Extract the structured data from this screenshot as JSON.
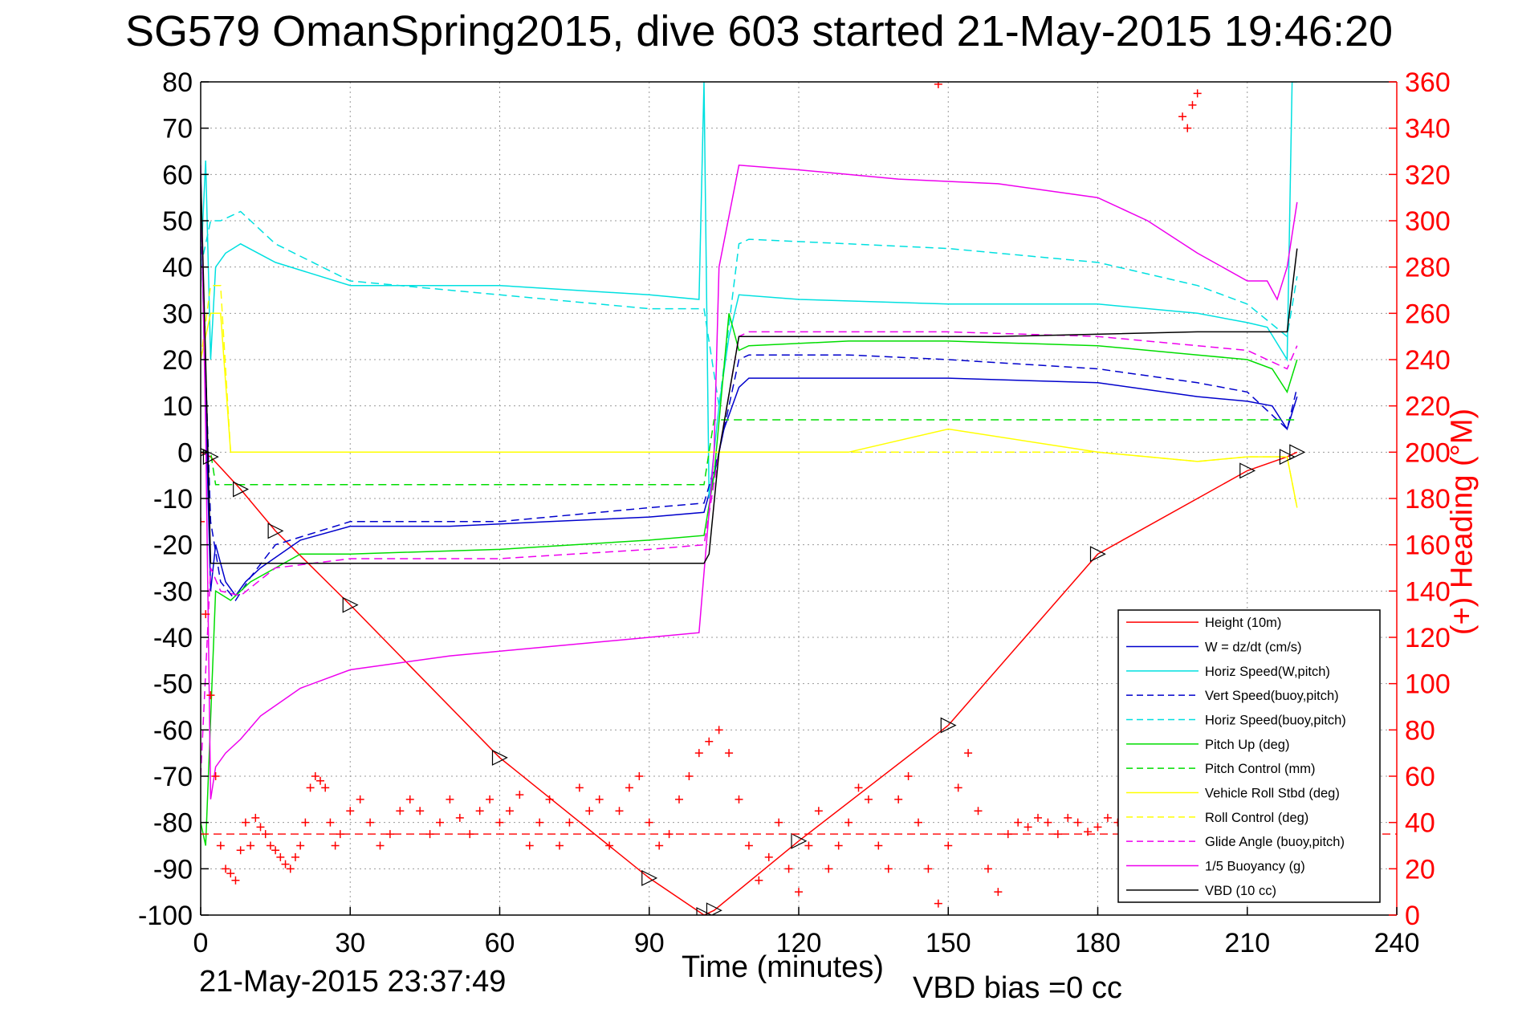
{
  "title": "SG579 OmanSpring2015, dive 603 started 21-May-2015 19:46:20",
  "footer_timestamp": "21-May-2015 23:37:49",
  "vbd_bias": "VBD bias =0 cc",
  "colors": {
    "red": "#ff0000",
    "blue": "#0000cc",
    "cyan": "#00e0e0",
    "green": "#00dd00",
    "yellow": "#ffff00",
    "magenta": "#ee00ee",
    "black": "#000000"
  },
  "chart_data": {
    "type": "line",
    "title": "SG579 OmanSpring2015, dive 603 started 21-May-2015 19:46:20",
    "xlabel": "Time (minutes)",
    "ylabel": "",
    "ylabel_right": "(+) Heading (°M)",
    "xlim": [
      0,
      240
    ],
    "ylim": [
      -100,
      80
    ],
    "ylim_right": [
      0,
      360
    ],
    "x_ticks": [
      "0",
      "30",
      "60",
      "90",
      "120",
      "150",
      "180",
      "210",
      "240"
    ],
    "y_ticks": [
      "80",
      "70",
      "60",
      "50",
      "40",
      "30",
      "20",
      "10",
      "0",
      "-10",
      "-20",
      "-30",
      "-40",
      "-50",
      "-60",
      "-70",
      "-80",
      "-90",
      "-100"
    ],
    "y_ticks_right": [
      "360",
      "340",
      "320",
      "300",
      "280",
      "260",
      "240",
      "220",
      "200",
      "180",
      "160",
      "140",
      "120",
      "100",
      "80",
      "60",
      "40",
      "20",
      "0"
    ],
    "grid": true,
    "legend_position": "bottom-right",
    "series": [
      {
        "name": "Height (10m)",
        "color": "#ff0000",
        "dash": "solid",
        "x": [
          0,
          2,
          8,
          15,
          30,
          60,
          90,
          101,
          103,
          120,
          150,
          180,
          210,
          218,
          220
        ],
        "y": [
          0,
          -1,
          -8,
          -17,
          -33,
          -66,
          -92,
          -100,
          -99,
          -84,
          -59,
          -22,
          -4,
          -1,
          0
        ]
      },
      {
        "name": "W = dz/dt (cm/s)",
        "color": "#0000cc",
        "dash": "solid",
        "x": [
          0,
          1,
          2,
          3,
          5,
          7,
          9,
          12,
          20,
          30,
          50,
          70,
          90,
          101,
          103,
          105,
          108,
          110,
          130,
          150,
          180,
          200,
          210,
          215,
          218,
          220
        ],
        "y": [
          55,
          10,
          -30,
          -20,
          -28,
          -31,
          -28,
          -25,
          -19,
          -16,
          -16,
          -15,
          -14,
          -13,
          -5,
          5,
          14,
          16,
          16,
          16,
          15,
          12,
          11,
          10,
          5,
          12
        ]
      },
      {
        "name": "Horiz Speed(W,pitch)",
        "color": "#00e0e0",
        "dash": "solid",
        "x": [
          0,
          1,
          2,
          3,
          5,
          8,
          15,
          30,
          60,
          90,
          100,
          101,
          102,
          104,
          106,
          108,
          120,
          150,
          180,
          200,
          210,
          214,
          218,
          219,
          220
        ],
        "y": [
          40,
          63,
          20,
          40,
          43,
          45,
          41,
          36,
          36,
          34,
          33,
          80,
          -10,
          10,
          25,
          34,
          33,
          32,
          32,
          30,
          28,
          27,
          20,
          80,
          80
        ]
      },
      {
        "name": "Vert Speed(buoy,pitch)",
        "color": "#0000cc",
        "dash": "dashed",
        "x": [
          0,
          2,
          4,
          7,
          10,
          15,
          30,
          60,
          90,
          101,
          104,
          108,
          110,
          130,
          150,
          180,
          200,
          210,
          218,
          220
        ],
        "y": [
          50,
          -15,
          -28,
          -32,
          -27,
          -20,
          -15,
          -15,
          -12,
          -11,
          0,
          20,
          21,
          21,
          20,
          18,
          15,
          13,
          5,
          14
        ]
      },
      {
        "name": "Horiz Speed(buoy,pitch)",
        "color": "#00e0e0",
        "dash": "dashed",
        "x": [
          0,
          2,
          4,
          8,
          15,
          30,
          60,
          90,
          101,
          104,
          108,
          110,
          130,
          150,
          180,
          200,
          210,
          218,
          220
        ],
        "y": [
          40,
          50,
          50,
          52,
          45,
          37,
          34,
          31,
          31,
          10,
          45,
          46,
          45,
          44,
          41,
          36,
          32,
          25,
          38
        ]
      },
      {
        "name": "Pitch Up (deg)",
        "color": "#00dd00",
        "dash": "solid",
        "x": [
          0,
          1,
          3,
          6,
          10,
          20,
          30,
          60,
          90,
          101,
          103,
          106,
          108,
          110,
          130,
          150,
          180,
          200,
          210,
          215,
          218,
          220
        ],
        "y": [
          -80,
          -85,
          -30,
          -32,
          -28,
          -22,
          -22,
          -21,
          -19,
          -18,
          -5,
          30,
          22,
          23,
          24,
          24,
          23,
          21,
          20,
          18,
          13,
          20
        ]
      },
      {
        "name": "Pitch Control (mm)",
        "color": "#00dd00",
        "dash": "dashed",
        "x": [
          0,
          2,
          3,
          10,
          30,
          60,
          90,
          101,
          103,
          110,
          150,
          200,
          220
        ],
        "y": [
          0,
          0,
          -7,
          -7,
          -7,
          -7,
          -7,
          -7,
          7,
          7,
          7,
          7,
          7
        ]
      },
      {
        "name": "Vehicle Roll Stbd (deg)",
        "color": "#ffff00",
        "dash": "solid",
        "x": [
          0,
          2,
          4,
          6,
          8,
          20,
          40,
          60,
          90,
          100,
          104,
          110,
          130,
          150,
          180,
          200,
          210,
          218,
          220
        ],
        "y": [
          20,
          30,
          30,
          0,
          0,
          0,
          0,
          0,
          0,
          0,
          0,
          0,
          0,
          5,
          0,
          -2,
          -1,
          -1,
          -12
        ]
      },
      {
        "name": "Roll Control (deg)",
        "color": "#ffff00",
        "dash": "dashed",
        "x": [
          0,
          2,
          4,
          6,
          8,
          20,
          40,
          60,
          90,
          100,
          104,
          110,
          130,
          150,
          180,
          200,
          210,
          218,
          220
        ],
        "y": [
          20,
          36,
          36,
          0,
          0,
          0,
          0,
          0,
          0,
          0,
          0,
          0,
          0,
          0,
          0,
          -2,
          -1,
          -1,
          -12
        ]
      },
      {
        "name": "Glide Angle (buoy,pitch)",
        "color": "#ee00ee",
        "dash": "dashed",
        "x": [
          0,
          2,
          4,
          8,
          15,
          30,
          60,
          90,
          101,
          104,
          108,
          110,
          130,
          150,
          180,
          200,
          210,
          218,
          220
        ],
        "y": [
          -70,
          -25,
          -30,
          -31,
          -25,
          -23,
          -23,
          -21,
          -20,
          0,
          25,
          26,
          26,
          26,
          25,
          23,
          22,
          18,
          23
        ]
      },
      {
        "name": "1/5 Buoyancy (g)",
        "color": "#ee00ee",
        "dash": "solid",
        "x": [
          0,
          1,
          2,
          3,
          5,
          8,
          12,
          20,
          30,
          50,
          70,
          90,
          100,
          103,
          104,
          108,
          120,
          140,
          160,
          180,
          190,
          200,
          210,
          214,
          216,
          218,
          220
        ],
        "y": [
          62,
          5,
          -75,
          -68,
          -65,
          -62,
          -57,
          -51,
          -47,
          -44,
          -42,
          -40,
          -39,
          0,
          40,
          62,
          61,
          59,
          58,
          55,
          50,
          43,
          37,
          37,
          33,
          40,
          54
        ]
      },
      {
        "name": "VBD (10 cc)",
        "color": "#000000",
        "dash": "solid",
        "x": [
          0,
          1,
          2,
          4,
          30,
          60,
          90,
          101,
          102,
          104,
          108,
          130,
          160,
          200,
          216,
          218,
          220
        ],
        "y": [
          60,
          20,
          -24,
          -24,
          -24,
          -24,
          -24,
          -24,
          -22,
          0,
          25,
          25,
          25,
          26,
          26,
          26,
          44
        ]
      }
    ],
    "heading_series": {
      "name": "(+) Heading",
      "color": "#ff0000",
      "marker": "+",
      "axis": "right",
      "x": [
        0,
        1,
        2,
        3,
        4,
        5,
        6,
        7,
        8,
        9,
        10,
        11,
        12,
        13,
        14,
        15,
        16,
        17,
        18,
        19,
        20,
        21,
        22,
        23,
        24,
        25,
        26,
        27,
        28,
        30,
        32,
        34,
        36,
        38,
        40,
        42,
        44,
        46,
        48,
        50,
        52,
        54,
        56,
        58,
        60,
        62,
        64,
        66,
        68,
        70,
        72,
        74,
        76,
        78,
        80,
        82,
        84,
        86,
        88,
        90,
        92,
        94,
        96,
        98,
        100,
        102,
        104,
        106,
        108,
        110,
        112,
        114,
        116,
        118,
        120,
        122,
        124,
        126,
        128,
        130,
        132,
        134,
        136,
        138,
        140,
        142,
        144,
        146,
        148,
        150,
        152,
        154,
        156,
        158,
        160,
        162,
        164,
        166,
        168,
        170,
        172,
        174,
        176,
        178,
        180,
        182,
        184,
        186
      ],
      "y": [
        170,
        130,
        95,
        60,
        30,
        20,
        18,
        15,
        28,
        40,
        30,
        42,
        38,
        35,
        30,
        28,
        25,
        22,
        20,
        25,
        30,
        40,
        55,
        60,
        58,
        55,
        40,
        30,
        35,
        45,
        50,
        40,
        30,
        35,
        45,
        50,
        45,
        35,
        40,
        50,
        42,
        35,
        45,
        50,
        40,
        45,
        52,
        30,
        40,
        50,
        30,
        40,
        55,
        45,
        50,
        30,
        45,
        55,
        60,
        40,
        30,
        35,
        50,
        60,
        70,
        75,
        80,
        70,
        50,
        30,
        15,
        25,
        40,
        20,
        10,
        30,
        45,
        20,
        30,
        40,
        55,
        50,
        30,
        20,
        50,
        60,
        40,
        20,
        5,
        30,
        55,
        70,
        45,
        20,
        10,
        35,
        40,
        38,
        42,
        40,
        35,
        42,
        40,
        36,
        38,
        42,
        40,
        45
      ],
      "mean": 35,
      "extra_points": [
        {
          "x": 148,
          "y": 359
        },
        {
          "x": 198,
          "y": 340
        },
        {
          "x": 199,
          "y": 350
        },
        {
          "x": 200,
          "y": 355
        },
        {
          "x": 197,
          "y": 345
        }
      ]
    }
  }
}
